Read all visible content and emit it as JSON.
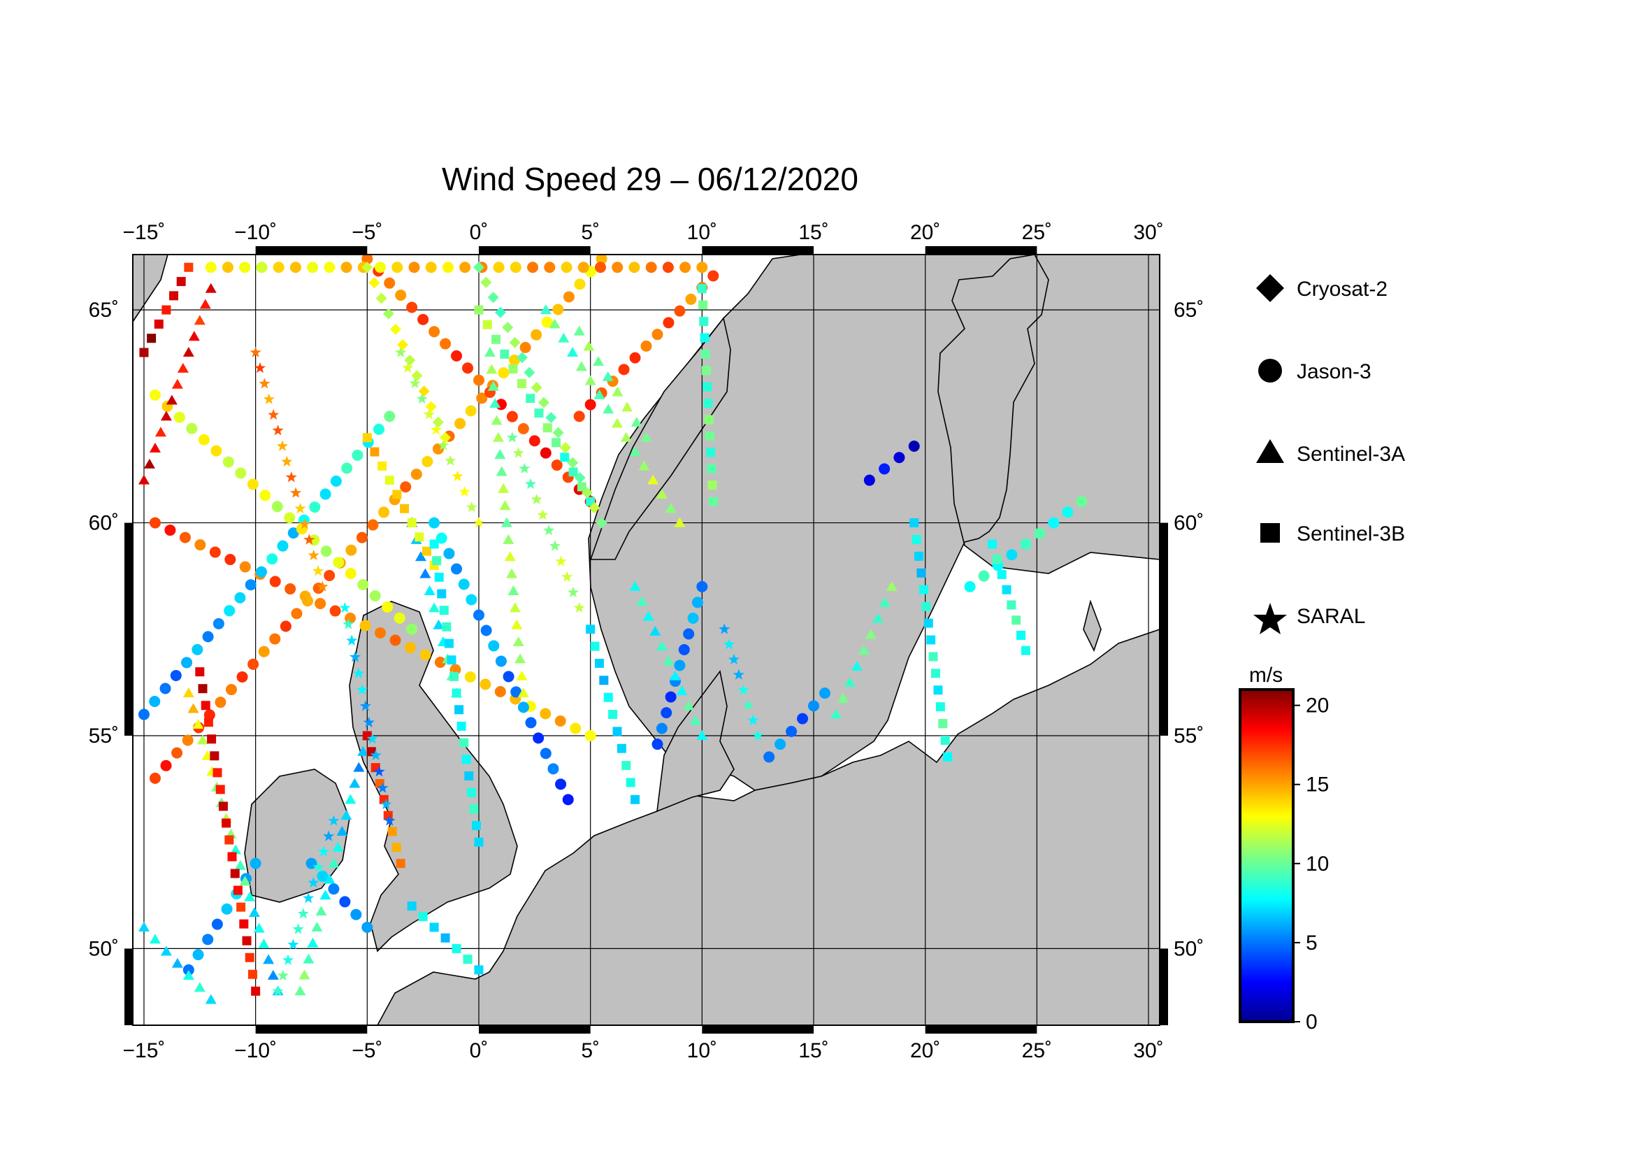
{
  "title": "Wind Speed 29 – 06/12/2020",
  "map": {
    "lon_range": [
      -15.5,
      30.5
    ],
    "lat_range": [
      48.2,
      66.3
    ],
    "lon_ticks": [
      -15,
      -10,
      -5,
      0,
      5,
      10,
      15,
      20,
      25,
      30
    ],
    "lat_ticks": [
      50,
      55,
      60,
      65
    ],
    "lon_tick_labels": [
      "−15˚",
      "−10˚",
      "−5˚",
      "0˚",
      "5˚",
      "10˚",
      "15˚",
      "20˚",
      "25˚",
      "30˚"
    ],
    "lat_tick_labels": [
      "50˚",
      "55˚",
      "60˚",
      "65˚"
    ],
    "land_color": "#c0c0c0",
    "ocean_color": "#ffffff",
    "grid": true
  },
  "legend": {
    "items": [
      {
        "label": "Cryosat-2",
        "marker": "diamond"
      },
      {
        "label": "Jason-3",
        "marker": "circle"
      },
      {
        "label": "Sentinel-3A",
        "marker": "triangle"
      },
      {
        "label": "Sentinel-3B",
        "marker": "square"
      },
      {
        "label": "SARAL",
        "marker": "star"
      }
    ]
  },
  "colorbar": {
    "unit": "m/s",
    "range": [
      0,
      21
    ],
    "ticks": [
      0,
      5,
      10,
      15,
      20
    ],
    "tick_labels": [
      "0",
      "5",
      "10",
      "15",
      "20"
    ],
    "colormap": [
      "#00008f",
      "#0000ff",
      "#0080ff",
      "#00ffff",
      "#80ff80",
      "#ffff00",
      "#ff8000",
      "#ff0000",
      "#800000"
    ]
  },
  "chart_data": {
    "type": "scatter",
    "title": "Wind Speed 29 – 06/12/2020",
    "xlabel": "",
    "ylabel": "",
    "series": [
      {
        "name": "Jason-3",
        "marker": "circle",
        "tracks": [
          {
            "from": [
              -14.5,
              54.0
            ],
            "to": [
              5.5,
              66.2
            ],
            "v0": 17,
            "v1": 14
          },
          {
            "from": [
              -5.0,
              66.2
            ],
            "to": [
              5.0,
              60.5
            ],
            "v0": 16,
            "v1": 18
          },
          {
            "from": [
              -12.0,
              66.0
            ],
            "to": [
              10.0,
              66.0
            ],
            "v0": 13,
            "v1": 16
          },
          {
            "from": [
              -14.5,
              60.0
            ],
            "to": [
              5.0,
              55.0
            ],
            "v0": 17,
            "v1": 14
          },
          {
            "from": [
              -15.0,
              55.5
            ],
            "to": [
              -4.0,
              62.5
            ],
            "v0": 5,
            "v1": 9
          },
          {
            "from": [
              -13.0,
              49.5
            ],
            "to": [
              -10.0,
              52.0
            ],
            "v0": 5,
            "v1": 7
          },
          {
            "from": [
              -14.5,
              63.0
            ],
            "to": [
              -3.0,
              57.5
            ],
            "v0": 13,
            "v1": 12
          },
          {
            "from": [
              4.5,
              62.5
            ],
            "to": [
              10.5,
              65.8
            ],
            "v0": 17,
            "v1": 16
          },
          {
            "from": [
              -2.0,
              60.0
            ],
            "to": [
              4.0,
              53.5
            ],
            "v0": 7,
            "v1": 4
          },
          {
            "from": [
              8.0,
              54.8
            ],
            "to": [
              10.0,
              58.5
            ],
            "v0": 4,
            "v1": 6
          },
          {
            "from": [
              17.5,
              61.0
            ],
            "to": [
              19.5,
              61.8
            ],
            "v0": 2,
            "v1": 2
          },
          {
            "from": [
              -7.5,
              52.0
            ],
            "to": [
              -5.0,
              50.5
            ],
            "v0": 6,
            "v1": 5
          },
          {
            "from": [
              13.0,
              54.5
            ],
            "to": [
              15.5,
              56.0
            ],
            "v0": 5,
            "v1": 5
          },
          {
            "from": [
              22.0,
              58.5
            ],
            "to": [
              27.0,
              60.5
            ],
            "v0": 8,
            "v1": 9
          }
        ]
      },
      {
        "name": "Sentinel-3A",
        "marker": "triangle",
        "tracks": [
          {
            "from": [
              -15.0,
              61.0
            ],
            "to": [
              -12.0,
              65.5
            ],
            "v0": 19,
            "v1": 18
          },
          {
            "from": [
              -13.0,
              56.0
            ],
            "to": [
              -9.0,
              49.0
            ],
            "v0": 14,
            "v1": 6
          },
          {
            "from": [
              -3.0,
              60.0
            ],
            "to": [
              -1.0,
              56.0
            ],
            "v0": 5,
            "v1": 10
          },
          {
            "from": [
              3.0,
              65.0
            ],
            "to": [
              9.0,
              60.0
            ],
            "v0": 9,
            "v1": 12
          },
          {
            "from": [
              -8.0,
              49.0
            ],
            "to": [
              -5.0,
              55.0
            ],
            "v0": 10,
            "v1": 6
          },
          {
            "from": [
              0.5,
              64.0
            ],
            "to": [
              2.0,
              56.0
            ],
            "v0": 10,
            "v1": 12
          },
          {
            "from": [
              7.0,
              58.5
            ],
            "to": [
              10.0,
              55.0
            ],
            "v0": 8,
            "v1": 9
          },
          {
            "from": [
              16.0,
              55.5
            ],
            "to": [
              18.5,
              58.5
            ],
            "v0": 9,
            "v1": 10
          },
          {
            "from": [
              -15.0,
              50.5
            ],
            "to": [
              -12.0,
              48.8
            ],
            "v0": 7,
            "v1": 8
          },
          {
            "from": [
              4.5,
              64.5
            ],
            "to": [
              7.5,
              62.0
            ],
            "v0": 10,
            "v1": 11
          }
        ]
      },
      {
        "name": "Sentinel-3B",
        "marker": "square",
        "tracks": [
          {
            "from": [
              -15.0,
              64.0
            ],
            "to": [
              -13.0,
              66.0
            ],
            "v0": 20,
            "v1": 18
          },
          {
            "from": [
              -12.5,
              56.5
            ],
            "to": [
              -10.0,
              49.0
            ],
            "v0": 19,
            "v1": 18
          },
          {
            "from": [
              -5.0,
              62.0
            ],
            "to": [
              -2.0,
              59.0
            ],
            "v0": 14,
            "v1": 13
          },
          {
            "from": [
              0.0,
              65.0
            ],
            "to": [
              5.0,
              60.5
            ],
            "v0": 11,
            "v1": 9
          },
          {
            "from": [
              -2.0,
              59.5
            ],
            "to": [
              0.0,
              52.5
            ],
            "v0": 8,
            "v1": 8
          },
          {
            "from": [
              5.0,
              57.5
            ],
            "to": [
              7.0,
              53.5
            ],
            "v0": 7,
            "v1": 8
          },
          {
            "from": [
              10.0,
              65.5
            ],
            "to": [
              10.5,
              60.5
            ],
            "v0": 9,
            "v1": 10
          },
          {
            "from": [
              19.5,
              60.0
            ],
            "to": [
              21.0,
              54.5
            ],
            "v0": 7,
            "v1": 9
          },
          {
            "from": [
              23.0,
              59.5
            ],
            "to": [
              24.5,
              57.0
            ],
            "v0": 8,
            "v1": 9
          },
          {
            "from": [
              -5.0,
              55.0
            ],
            "to": [
              -3.5,
              52.0
            ],
            "v0": 19,
            "v1": 15
          },
          {
            "from": [
              -3.0,
              51.0
            ],
            "to": [
              0.0,
              49.5
            ],
            "v0": 7,
            "v1": 8
          }
        ]
      },
      {
        "name": "SARAL",
        "marker": "star",
        "tracks": [
          {
            "from": [
              -10.0,
              64.0
            ],
            "to": [
              -7.0,
              58.5
            ],
            "v0": 16,
            "v1": 15
          },
          {
            "from": [
              -3.5,
              64.0
            ],
            "to": [
              0.0,
              60.0
            ],
            "v0": 11,
            "v1": 13
          },
          {
            "from": [
              1.5,
              62.0
            ],
            "to": [
              4.5,
              58.0
            ],
            "v0": 10,
            "v1": 12
          },
          {
            "from": [
              -6.0,
              58.0
            ],
            "to": [
              -4.0,
              53.0
            ],
            "v0": 8,
            "v1": 5
          },
          {
            "from": [
              11.0,
              57.5
            ],
            "to": [
              12.5,
              55.0
            ],
            "v0": 6,
            "v1": 9
          },
          {
            "from": [
              -9.0,
              49.0
            ],
            "to": [
              -6.5,
              53.0
            ],
            "v0": 9,
            "v1": 7
          }
        ]
      },
      {
        "name": "Cryosat-2",
        "marker": "diamond",
        "tracks": [
          {
            "from": [
              0.0,
              66.0
            ],
            "to": [
              5.5,
              60.0
            ],
            "v0": 10,
            "v1": 11
          },
          {
            "from": [
              -5.0,
              66.0
            ],
            "to": [
              -1.5,
              62.0
            ],
            "v0": 12,
            "v1": 13
          }
        ]
      }
    ]
  }
}
